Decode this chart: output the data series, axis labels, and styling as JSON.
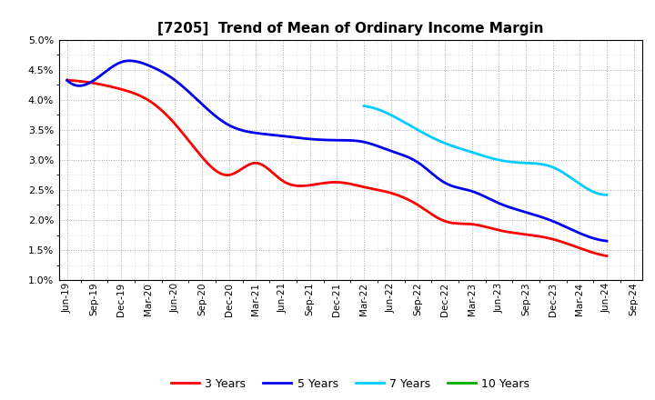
{
  "title": "[7205]  Trend of Mean of Ordinary Income Margin",
  "xlabels": [
    "Jun-19",
    "Sep-19",
    "Dec-19",
    "Mar-20",
    "Jun-20",
    "Sep-20",
    "Dec-20",
    "Mar-21",
    "Jun-21",
    "Sep-21",
    "Dec-21",
    "Mar-22",
    "Jun-22",
    "Sep-22",
    "Dec-22",
    "Mar-23",
    "Jun-23",
    "Sep-23",
    "Dec-23",
    "Mar-24",
    "Jun-24",
    "Sep-24"
  ],
  "ylim": [
    0.01,
    0.05
  ],
  "yticks": [
    0.01,
    0.015,
    0.02,
    0.025,
    0.03,
    0.035,
    0.04,
    0.045,
    0.05
  ],
  "series": {
    "3 Years": {
      "color": "#FF0000",
      "data_x": [
        "Jun-19",
        "Sep-19",
        "Dec-19",
        "Mar-20",
        "Jun-20",
        "Sep-20",
        "Dec-20",
        "Mar-21",
        "Jun-21",
        "Sep-21",
        "Dec-21",
        "Mar-22",
        "Jun-22",
        "Sep-22",
        "Dec-22",
        "Mar-23",
        "Jun-23",
        "Sep-23",
        "Dec-23",
        "Mar-24",
        "Jun-24"
      ],
      "data_y": [
        0.0433,
        0.0428,
        0.0418,
        0.04,
        0.036,
        0.0305,
        0.0275,
        0.0295,
        0.0265,
        0.0258,
        0.0263,
        0.0255,
        0.0245,
        0.0225,
        0.0198,
        0.0193,
        0.0183,
        0.0176,
        0.0168,
        0.0153,
        0.014
      ]
    },
    "5 Years": {
      "color": "#0000EE",
      "data_x": [
        "Jun-19",
        "Sep-19",
        "Dec-19",
        "Mar-20",
        "Jun-20",
        "Sep-20",
        "Dec-20",
        "Mar-21",
        "Jun-21",
        "Sep-21",
        "Dec-21",
        "Mar-22",
        "Jun-22",
        "Sep-22",
        "Dec-22",
        "Mar-23",
        "Jun-23",
        "Sep-23",
        "Dec-23",
        "Mar-24",
        "Jun-24"
      ],
      "data_y": [
        0.0433,
        0.0433,
        0.0463,
        0.0458,
        0.0433,
        0.0393,
        0.0358,
        0.0345,
        0.034,
        0.0335,
        0.0333,
        0.033,
        0.0315,
        0.0296,
        0.0262,
        0.0248,
        0.0228,
        0.0213,
        0.0198,
        0.0178,
        0.0165
      ]
    },
    "7 Years": {
      "color": "#00CCFF",
      "data_x": [
        "Mar-22",
        "Jun-22",
        "Sep-22",
        "Dec-22",
        "Mar-23",
        "Jun-23",
        "Sep-23",
        "Dec-23",
        "Mar-24",
        "Jun-24"
      ],
      "data_y": [
        0.039,
        0.0375,
        0.035,
        0.0328,
        0.0313,
        0.03,
        0.0295,
        0.0288,
        0.026,
        0.0242
      ]
    },
    "10 Years": {
      "color": "#00AA00",
      "data_x": [],
      "data_y": []
    }
  },
  "legend_labels": [
    "3 Years",
    "5 Years",
    "7 Years",
    "10 Years"
  ],
  "legend_colors": [
    "#FF0000",
    "#0000EE",
    "#00CCFF",
    "#00AA00"
  ],
  "plot_bg_color": "#FFFFFF",
  "fig_bg_color": "#FFFFFF",
  "grid_color": "#AAAAAA",
  "title_fontsize": 11,
  "tick_fontsize": 8,
  "line_width": 2.0
}
